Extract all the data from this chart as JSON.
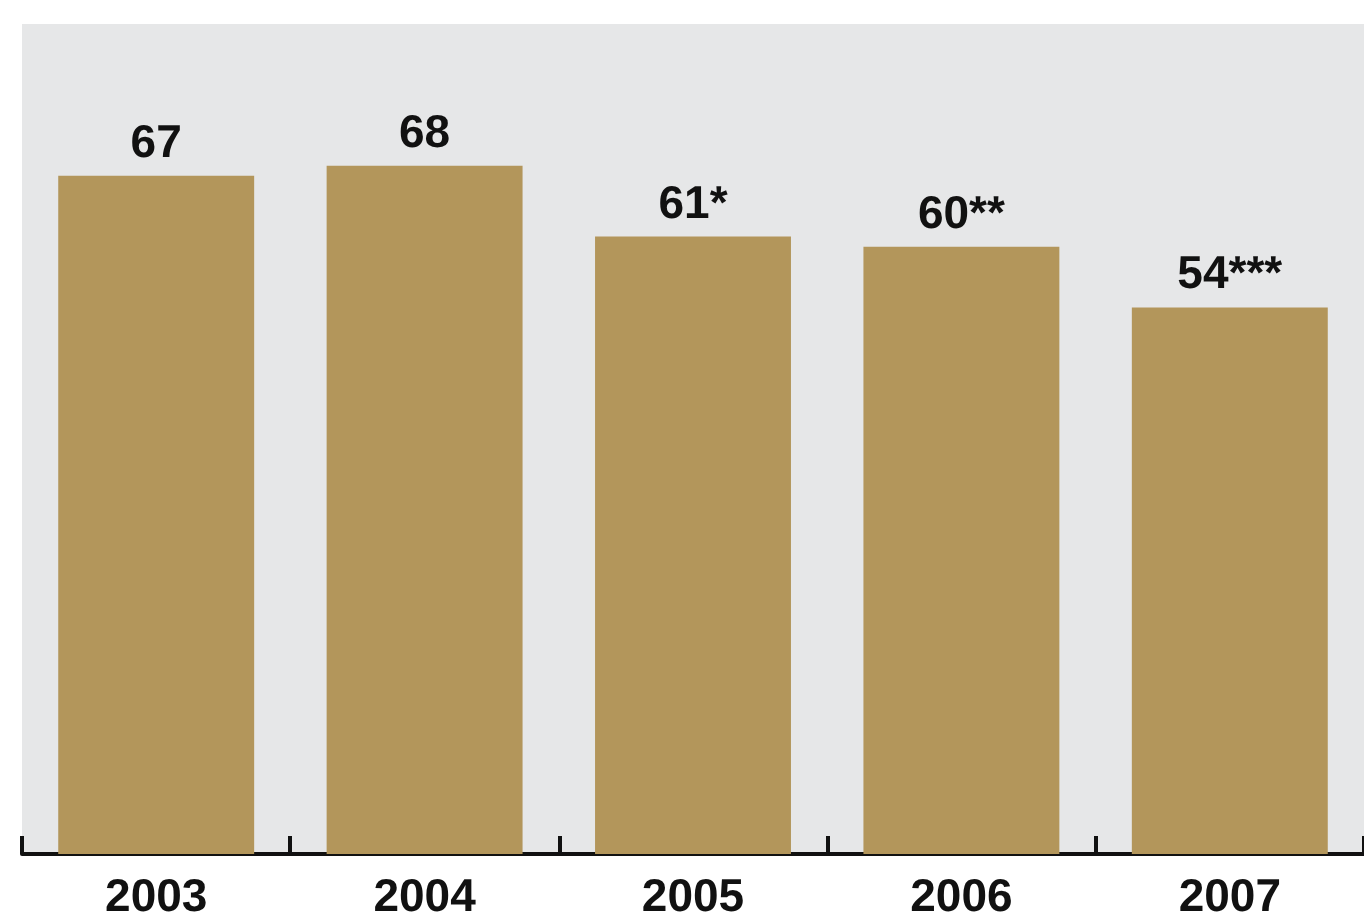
{
  "chart_data": {
    "type": "bar",
    "categories": [
      "2003",
      "2004",
      "2005",
      "2006",
      "2007"
    ],
    "values": [
      67,
      68,
      61,
      60,
      54
    ],
    "value_labels": [
      "67",
      "68",
      "61*",
      "60**",
      "54***"
    ],
    "color": "#b3965b",
    "ylim": [
      0,
      82
    ],
    "tick_labels": "x"
  }
}
